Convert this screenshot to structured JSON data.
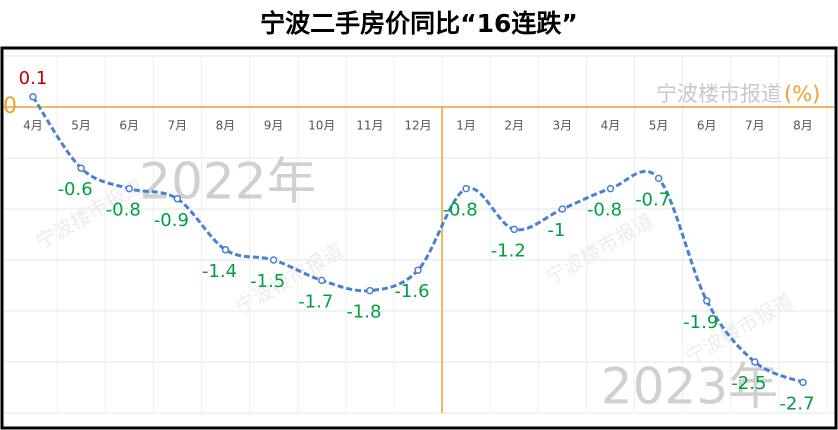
{
  "chart_data": {
    "type": "line",
    "title": "宁波二手房价同比“16连跌”",
    "source": "宁波楼市报道",
    "unit": "(%)",
    "categories": [
      "4月",
      "5月",
      "6月",
      "7月",
      "8月",
      "9月",
      "10月",
      "11月",
      "12月",
      "1月",
      "2月",
      "3月",
      "4月",
      "5月",
      "6月",
      "7月",
      "8月"
    ],
    "series": [
      {
        "name": "同比",
        "color": "#4a7fd6",
        "values": [
          0.1,
          -0.6,
          -0.8,
          -0.9,
          -1.4,
          -1.5,
          -1.7,
          -1.8,
          -1.6,
          -0.8,
          -1.2,
          -1,
          -0.8,
          -0.7,
          -1.9,
          -2.5,
          -2.7
        ]
      }
    ],
    "years": [
      {
        "label": "2022年",
        "start": 0
      },
      {
        "label": "2023年",
        "start": 9
      }
    ],
    "ylim": [
      -3,
      0.5
    ],
    "yticks": [
      -3,
      -2.5,
      -2,
      -1.5,
      -1,
      -0.5,
      0,
      0.5
    ],
    "grid": true,
    "positive_color": "#c00000",
    "negative_color": "#00a040",
    "zero_color": "#f0a030"
  }
}
